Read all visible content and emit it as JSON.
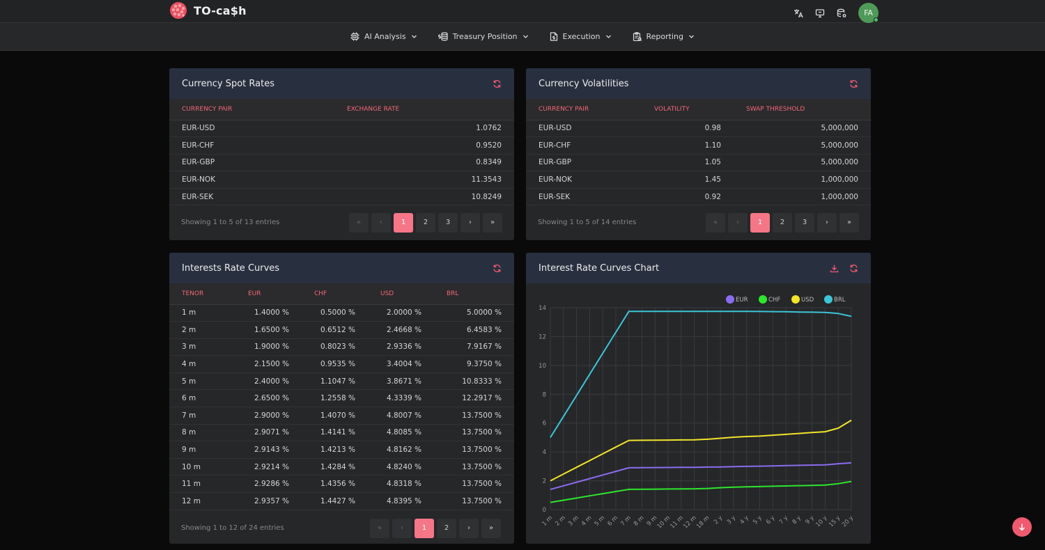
{
  "app": {
    "title": "TO-ca$h",
    "user_initials": "FA"
  },
  "nav": [
    {
      "label": "AI Analysis"
    },
    {
      "label": "Treasury Position"
    },
    {
      "label": "Execution"
    },
    {
      "label": "Reporting"
    }
  ],
  "spot": {
    "title": "Currency Spot Rates",
    "columns": [
      "CURRENCY PAIR",
      "EXCHANGE RATE"
    ],
    "rows": [
      [
        "EUR-USD",
        "1.0762"
      ],
      [
        "EUR-CHF",
        "0.9520"
      ],
      [
        "EUR-GBP",
        "0.8349"
      ],
      [
        "EUR-NOK",
        "11.3543"
      ],
      [
        "EUR-SEK",
        "10.8249"
      ]
    ],
    "entries": "Showing 1 to 5 of 13 entries",
    "pages": [
      "1",
      "2",
      "3"
    ]
  },
  "vol": {
    "title": "Currency Volatilities",
    "columns": [
      "CURRENCY PAIR",
      "VOLATILITY",
      "SWAP THRESHOLD"
    ],
    "rows": [
      [
        "EUR-USD",
        "0.98",
        "5,000,000"
      ],
      [
        "EUR-CHF",
        "1.10",
        "5,000,000"
      ],
      [
        "EUR-GBP",
        "1.05",
        "5,000,000"
      ],
      [
        "EUR-NOK",
        "1.45",
        "1,000,000"
      ],
      [
        "EUR-SEK",
        "0.92",
        "1,000,000"
      ]
    ],
    "entries": "Showing 1 to 5 of 14 entries",
    "pages": [
      "1",
      "2",
      "3"
    ]
  },
  "curves": {
    "title": "Interests Rate Curves",
    "columns": [
      "TENOR",
      "EUR",
      "CHF",
      "USD",
      "BRL"
    ],
    "rows": [
      [
        "1 m",
        "1.4000 %",
        "0.5000 %",
        "2.0000 %",
        "5.0000 %"
      ],
      [
        "2 m",
        "1.6500 %",
        "0.6512 %",
        "2.4668 %",
        "6.4583 %"
      ],
      [
        "3 m",
        "1.9000 %",
        "0.8023 %",
        "2.9336 %",
        "7.9167 %"
      ],
      [
        "4 m",
        "2.1500 %",
        "0.9535 %",
        "3.4004 %",
        "9.3750 %"
      ],
      [
        "5 m",
        "2.4000 %",
        "1.1047 %",
        "3.8671 %",
        "10.8333 %"
      ],
      [
        "6 m",
        "2.6500 %",
        "1.2558 %",
        "4.3339 %",
        "12.2917 %"
      ],
      [
        "7 m",
        "2.9000 %",
        "1.4070 %",
        "4.8007 %",
        "13.7500 %"
      ],
      [
        "8 m",
        "2.9071 %",
        "1.4141 %",
        "4.8085 %",
        "13.7500 %"
      ],
      [
        "9 m",
        "2.9143 %",
        "1.4213 %",
        "4.8162 %",
        "13.7500 %"
      ],
      [
        "10 m",
        "2.9214 %",
        "1.4284 %",
        "4.8240 %",
        "13.7500 %"
      ],
      [
        "11 m",
        "2.9286 %",
        "1.4356 %",
        "4.8318 %",
        "13.7500 %"
      ],
      [
        "12 m",
        "2.9357 %",
        "1.4427 %",
        "4.8395 %",
        "13.7500 %"
      ]
    ],
    "entries": "Showing 1 to 12 of 24 entries",
    "pages": [
      "1",
      "2"
    ]
  },
  "chart_panel": {
    "title": "Interest Rate Curves Chart"
  },
  "chart_data": {
    "type": "line",
    "x": [
      "1 m",
      "2 m",
      "3 m",
      "4 m",
      "5 m",
      "6 m",
      "7 m",
      "8 m",
      "9 m",
      "10 m",
      "11 m",
      "12 m",
      "18 m",
      "2 y",
      "3 y",
      "4 y",
      "5 y",
      "6 y",
      "7 y",
      "8 y",
      "9 y",
      "10 y",
      "15 y",
      "20 y"
    ],
    "series": [
      {
        "name": "EUR",
        "color": "#8b6cf0",
        "values": [
          1.4,
          1.65,
          1.9,
          2.15,
          2.4,
          2.65,
          2.9,
          2.907,
          2.914,
          2.921,
          2.929,
          2.936,
          2.95,
          2.96,
          2.98,
          3.0,
          3.01,
          3.03,
          3.05,
          3.07,
          3.09,
          3.1,
          3.18,
          3.25
        ]
      },
      {
        "name": "CHF",
        "color": "#2ee62e",
        "values": [
          0.5,
          0.651,
          0.802,
          0.954,
          1.105,
          1.256,
          1.407,
          1.414,
          1.421,
          1.428,
          1.436,
          1.443,
          1.47,
          1.52,
          1.56,
          1.58,
          1.6,
          1.62,
          1.64,
          1.66,
          1.68,
          1.7,
          1.8,
          1.95
        ]
      },
      {
        "name": "USD",
        "color": "#f2e52a",
        "values": [
          2.0,
          2.467,
          2.934,
          3.4,
          3.867,
          4.334,
          4.801,
          4.809,
          4.816,
          4.824,
          4.832,
          4.84,
          4.88,
          4.95,
          5.02,
          5.07,
          5.1,
          5.16,
          5.22,
          5.28,
          5.35,
          5.4,
          5.65,
          6.2
        ]
      },
      {
        "name": "BRL",
        "color": "#3cc6d8",
        "values": [
          5.0,
          6.458,
          7.917,
          9.375,
          10.833,
          12.292,
          13.75,
          13.75,
          13.75,
          13.75,
          13.75,
          13.75,
          13.75,
          13.75,
          13.75,
          13.75,
          13.74,
          13.73,
          13.72,
          13.7,
          13.69,
          13.67,
          13.6,
          13.4
        ]
      }
    ],
    "ylim": [
      0,
      14
    ],
    "yticks": [
      0,
      2,
      4,
      6,
      8,
      10,
      12,
      14
    ],
    "grid": true,
    "legend": "top-right"
  }
}
